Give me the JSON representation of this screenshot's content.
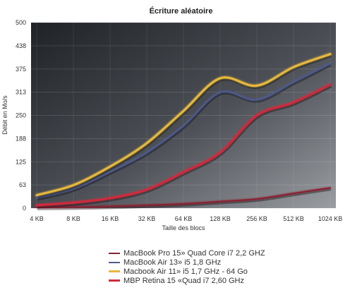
{
  "chart_data": {
    "type": "line",
    "title": "Écriture aléatoire",
    "xlabel": "Taille des blocs",
    "ylabel": "Débit en Mo/s",
    "ylim": [
      0,
      500
    ],
    "yticks": [
      "0",
      "63",
      "125",
      "188",
      "250",
      "313",
      "375",
      "438",
      "500"
    ],
    "ytick_values": [
      0,
      62.5,
      125,
      187.5,
      250,
      312.5,
      375,
      437.5,
      500
    ],
    "categories": [
      "4 KB",
      "8 KB",
      "16 KB",
      "32 KB",
      "64 KB",
      "128 KB",
      "256 KB",
      "512 KB",
      "1024 KB"
    ],
    "grid": true,
    "legend_position": "bottom",
    "series": [
      {
        "name": "MacBook Pro 15» Quad Core i7 2,2 GHZ",
        "color": "#8a2130",
        "width": 2,
        "values": [
          2,
          3,
          5,
          8,
          12,
          18,
          25,
          40,
          55
        ]
      },
      {
        "name": "MacBook Air 13» i5 1,8 GHz",
        "color": "#505a90",
        "width": 2,
        "values": [
          28,
          52,
          98,
          150,
          222,
          312,
          292,
          340,
          390
        ]
      },
      {
        "name": "Macbook Air 11» i5 1,7 GHz - 64 Go",
        "color": "#e6b83c",
        "width": 3,
        "values": [
          35,
          62,
          112,
          175,
          262,
          350,
          330,
          380,
          415
        ]
      },
      {
        "name": "MBP Retina 15 «Quad i7 2,60 GHz",
        "color": "#cf2a3c",
        "width": 3,
        "values": [
          8,
          15,
          27,
          50,
          97,
          150,
          250,
          285,
          333
        ]
      }
    ]
  }
}
